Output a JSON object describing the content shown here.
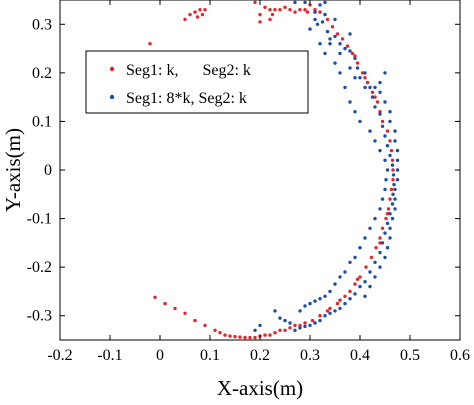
{
  "chart_data": {
    "type": "scatter",
    "xlabel": "X-axis(m)",
    "ylabel": "Y-axis(m)",
    "xlim": [
      -0.2,
      0.6
    ],
    "ylim": [
      -0.35,
      0.35
    ],
    "xticks": [
      "-0.2",
      "-0.1",
      "0",
      "0.1",
      "0.2",
      "0.3",
      "0.4",
      "0.5",
      "0.6"
    ],
    "yticks": [
      "0.3",
      "0.2",
      "0.1",
      "0",
      "-0.1",
      "-0.2",
      "-0.3"
    ],
    "grid": false,
    "legend_position": "top-left",
    "series": [
      {
        "name": "Seg1: k,      Seg2: k",
        "color": "#e3262b",
        "points": [
          [
            0.3,
            0.34
          ],
          [
            0.31,
            0.33
          ],
          [
            0.32,
            0.325
          ],
          [
            0.335,
            0.31
          ],
          [
            0.345,
            0.295
          ],
          [
            0.355,
            0.28
          ],
          [
            0.365,
            0.27
          ],
          [
            0.375,
            0.255
          ],
          [
            0.385,
            0.24
          ],
          [
            0.395,
            0.22
          ],
          [
            0.405,
            0.2
          ],
          [
            0.415,
            0.18
          ],
          [
            0.425,
            0.16
          ],
          [
            0.435,
            0.14
          ],
          [
            0.44,
            0.12
          ],
          [
            0.445,
            0.1
          ],
          [
            0.455,
            0.08
          ],
          [
            0.46,
            0.06
          ],
          [
            0.463,
            0.04
          ],
          [
            0.465,
            0.02
          ],
          [
            0.466,
            0.0
          ],
          [
            0.466,
            -0.02
          ],
          [
            0.463,
            -0.04
          ],
          [
            0.46,
            -0.06
          ],
          [
            0.457,
            -0.08
          ],
          [
            0.452,
            -0.1
          ],
          [
            0.445,
            -0.12
          ],
          [
            0.44,
            -0.14
          ],
          [
            0.432,
            -0.16
          ],
          [
            0.423,
            -0.18
          ],
          [
            0.412,
            -0.2
          ],
          [
            0.4,
            -0.22
          ],
          [
            0.39,
            -0.235
          ],
          [
            0.38,
            -0.25
          ],
          [
            0.37,
            -0.26
          ],
          [
            0.355,
            -0.275
          ],
          [
            0.335,
            -0.29
          ],
          [
            0.32,
            -0.3
          ],
          [
            0.305,
            -0.31
          ],
          [
            0.29,
            -0.315
          ],
          [
            0.27,
            -0.32
          ],
          [
            0.25,
            -0.33
          ],
          [
            0.23,
            -0.335
          ],
          [
            0.21,
            -0.34
          ],
          [
            0.19,
            -0.345
          ],
          [
            0.17,
            -0.345
          ],
          [
            0.15,
            -0.343
          ],
          [
            0.13,
            -0.34
          ],
          [
            0.11,
            -0.33
          ],
          [
            0.09,
            -0.32
          ],
          [
            0.07,
            -0.31
          ],
          [
            0.05,
            -0.295
          ],
          [
            0.03,
            -0.285
          ],
          [
            0.01,
            -0.275
          ],
          [
            -0.01,
            -0.262
          ],
          [
            -0.02,
            0.26
          ],
          [
            0.05,
            0.31
          ],
          [
            0.07,
            0.325
          ],
          [
            0.08,
            0.33
          ],
          [
            0.09,
            0.33
          ],
          [
            0.085,
            0.32
          ],
          [
            0.075,
            0.315
          ],
          [
            0.06,
            0.32
          ],
          [
            0.19,
            0.345
          ],
          [
            0.21,
            0.335
          ],
          [
            0.22,
            0.33
          ],
          [
            0.23,
            0.33
          ],
          [
            0.24,
            0.33
          ],
          [
            0.25,
            0.335
          ],
          [
            0.26,
            0.33
          ],
          [
            0.27,
            0.325
          ],
          [
            0.28,
            0.33
          ],
          [
            0.29,
            0.33
          ],
          [
            0.295,
            0.325
          ],
          [
            0.2,
            0.305
          ],
          [
            0.22,
            0.31
          ],
          [
            0.225,
            0.32
          ],
          [
            0.2,
            0.32
          ],
          [
            0.39,
            0.235
          ],
          [
            0.41,
            0.19
          ],
          [
            0.43,
            0.15
          ],
          [
            0.455,
            -0.09
          ],
          [
            0.44,
            -0.15
          ],
          [
            0.395,
            -0.225
          ],
          [
            0.36,
            -0.268
          ],
          [
            0.34,
            -0.285
          ],
          [
            0.28,
            -0.32
          ],
          [
            0.26,
            -0.325
          ],
          [
            0.24,
            -0.33
          ],
          [
            0.22,
            -0.34
          ],
          [
            0.2,
            -0.342
          ],
          [
            0.18,
            -0.345
          ],
          [
            0.16,
            -0.344
          ],
          [
            0.14,
            -0.342
          ],
          [
            0.12,
            -0.335
          ]
        ]
      },
      {
        "name": "Seg1: 8*k, Seg2: k",
        "color": "#1a4fa8",
        "points": [
          [
            0.27,
            0.345
          ],
          [
            0.29,
            0.345
          ],
          [
            0.31,
            0.325
          ],
          [
            0.315,
            0.3
          ],
          [
            0.325,
            0.305
          ],
          [
            0.335,
            0.285
          ],
          [
            0.34,
            0.27
          ],
          [
            0.35,
            0.275
          ],
          [
            0.36,
            0.26
          ],
          [
            0.37,
            0.25
          ],
          [
            0.38,
            0.245
          ],
          [
            0.39,
            0.23
          ],
          [
            0.395,
            0.21
          ],
          [
            0.4,
            0.19
          ],
          [
            0.41,
            0.2
          ],
          [
            0.42,
            0.17
          ],
          [
            0.425,
            0.15
          ],
          [
            0.43,
            0.13
          ],
          [
            0.44,
            0.115
          ],
          [
            0.445,
            0.09
          ],
          [
            0.45,
            0.07
          ],
          [
            0.455,
            0.05
          ],
          [
            0.46,
            0.03
          ],
          [
            0.465,
            0.01
          ],
          [
            0.467,
            -0.01
          ],
          [
            0.468,
            -0.03
          ],
          [
            0.466,
            -0.05
          ],
          [
            0.465,
            -0.07
          ],
          [
            0.46,
            -0.09
          ],
          [
            0.455,
            -0.11
          ],
          [
            0.45,
            -0.13
          ],
          [
            0.445,
            -0.15
          ],
          [
            0.44,
            -0.17
          ],
          [
            0.43,
            -0.19
          ],
          [
            0.42,
            -0.21
          ],
          [
            0.41,
            -0.23
          ],
          [
            0.4,
            -0.24
          ],
          [
            0.39,
            -0.255
          ],
          [
            0.38,
            -0.265
          ],
          [
            0.37,
            -0.275
          ],
          [
            0.36,
            -0.285
          ],
          [
            0.35,
            -0.29
          ],
          [
            0.34,
            -0.295
          ],
          [
            0.33,
            -0.3
          ],
          [
            0.32,
            -0.31
          ],
          [
            0.31,
            -0.315
          ],
          [
            0.3,
            -0.32
          ],
          [
            0.29,
            -0.322
          ],
          [
            0.28,
            -0.325
          ],
          [
            0.27,
            -0.33
          ],
          [
            0.26,
            -0.315
          ],
          [
            0.25,
            -0.31
          ],
          [
            0.24,
            -0.305
          ],
          [
            0.23,
            -0.29
          ],
          [
            0.2,
            -0.32
          ],
          [
            0.19,
            -0.33
          ],
          [
            0.3,
            0.29
          ],
          [
            0.32,
            0.26
          ],
          [
            0.33,
            0.24
          ],
          [
            0.35,
            0.22
          ],
          [
            0.36,
            0.2
          ],
          [
            0.37,
            0.17
          ],
          [
            0.38,
            0.14
          ],
          [
            0.39,
            0.12
          ],
          [
            0.4,
            0.1
          ],
          [
            0.42,
            0.08
          ],
          [
            0.43,
            0.06
          ],
          [
            0.44,
            0.04
          ],
          [
            0.45,
            0.02
          ],
          [
            0.455,
            0.0
          ],
          [
            0.452,
            -0.02
          ],
          [
            0.45,
            -0.04
          ],
          [
            0.445,
            -0.06
          ],
          [
            0.44,
            -0.08
          ],
          [
            0.43,
            -0.1
          ],
          [
            0.42,
            -0.12
          ],
          [
            0.41,
            -0.14
          ],
          [
            0.4,
            -0.16
          ],
          [
            0.39,
            -0.18
          ],
          [
            0.38,
            -0.19
          ],
          [
            0.37,
            -0.21
          ],
          [
            0.36,
            -0.22
          ],
          [
            0.35,
            -0.235
          ],
          [
            0.34,
            -0.25
          ],
          [
            0.33,
            -0.26
          ],
          [
            0.32,
            -0.265
          ],
          [
            0.31,
            -0.27
          ],
          [
            0.3,
            -0.275
          ],
          [
            0.29,
            -0.28
          ],
          [
            0.28,
            -0.29
          ],
          [
            0.44,
            0.16
          ],
          [
            0.45,
            0.14
          ],
          [
            0.46,
            0.12
          ],
          [
            0.46,
            0.1
          ],
          [
            0.47,
            0.08
          ],
          [
            0.47,
            0.06
          ],
          [
            0.475,
            0.04
          ],
          [
            0.475,
            0.02
          ],
          [
            0.475,
            0.0
          ],
          [
            0.475,
            -0.02
          ],
          [
            0.47,
            -0.04
          ],
          [
            0.47,
            -0.06
          ],
          [
            0.47,
            -0.08
          ],
          [
            0.465,
            -0.1
          ],
          [
            0.46,
            -0.12
          ],
          [
            0.46,
            -0.14
          ],
          [
            0.455,
            -0.16
          ],
          [
            0.45,
            -0.18
          ],
          [
            0.44,
            -0.2
          ],
          [
            0.43,
            -0.22
          ],
          [
            0.42,
            -0.24
          ],
          [
            0.41,
            -0.26
          ],
          [
            0.34,
            0.26
          ],
          [
            0.36,
            0.24
          ],
          [
            0.38,
            0.21
          ],
          [
            0.39,
            0.19
          ],
          [
            0.41,
            0.17
          ],
          [
            0.43,
            0.17
          ],
          [
            0.44,
            0.18
          ],
          [
            0.45,
            0.2
          ],
          [
            0.38,
            0.28
          ],
          [
            0.35,
            0.31
          ],
          [
            0.33,
            0.32
          ],
          [
            0.32,
            0.34
          ],
          [
            0.33,
            0.345
          ],
          [
            0.31,
            0.31
          ]
        ]
      }
    ]
  }
}
